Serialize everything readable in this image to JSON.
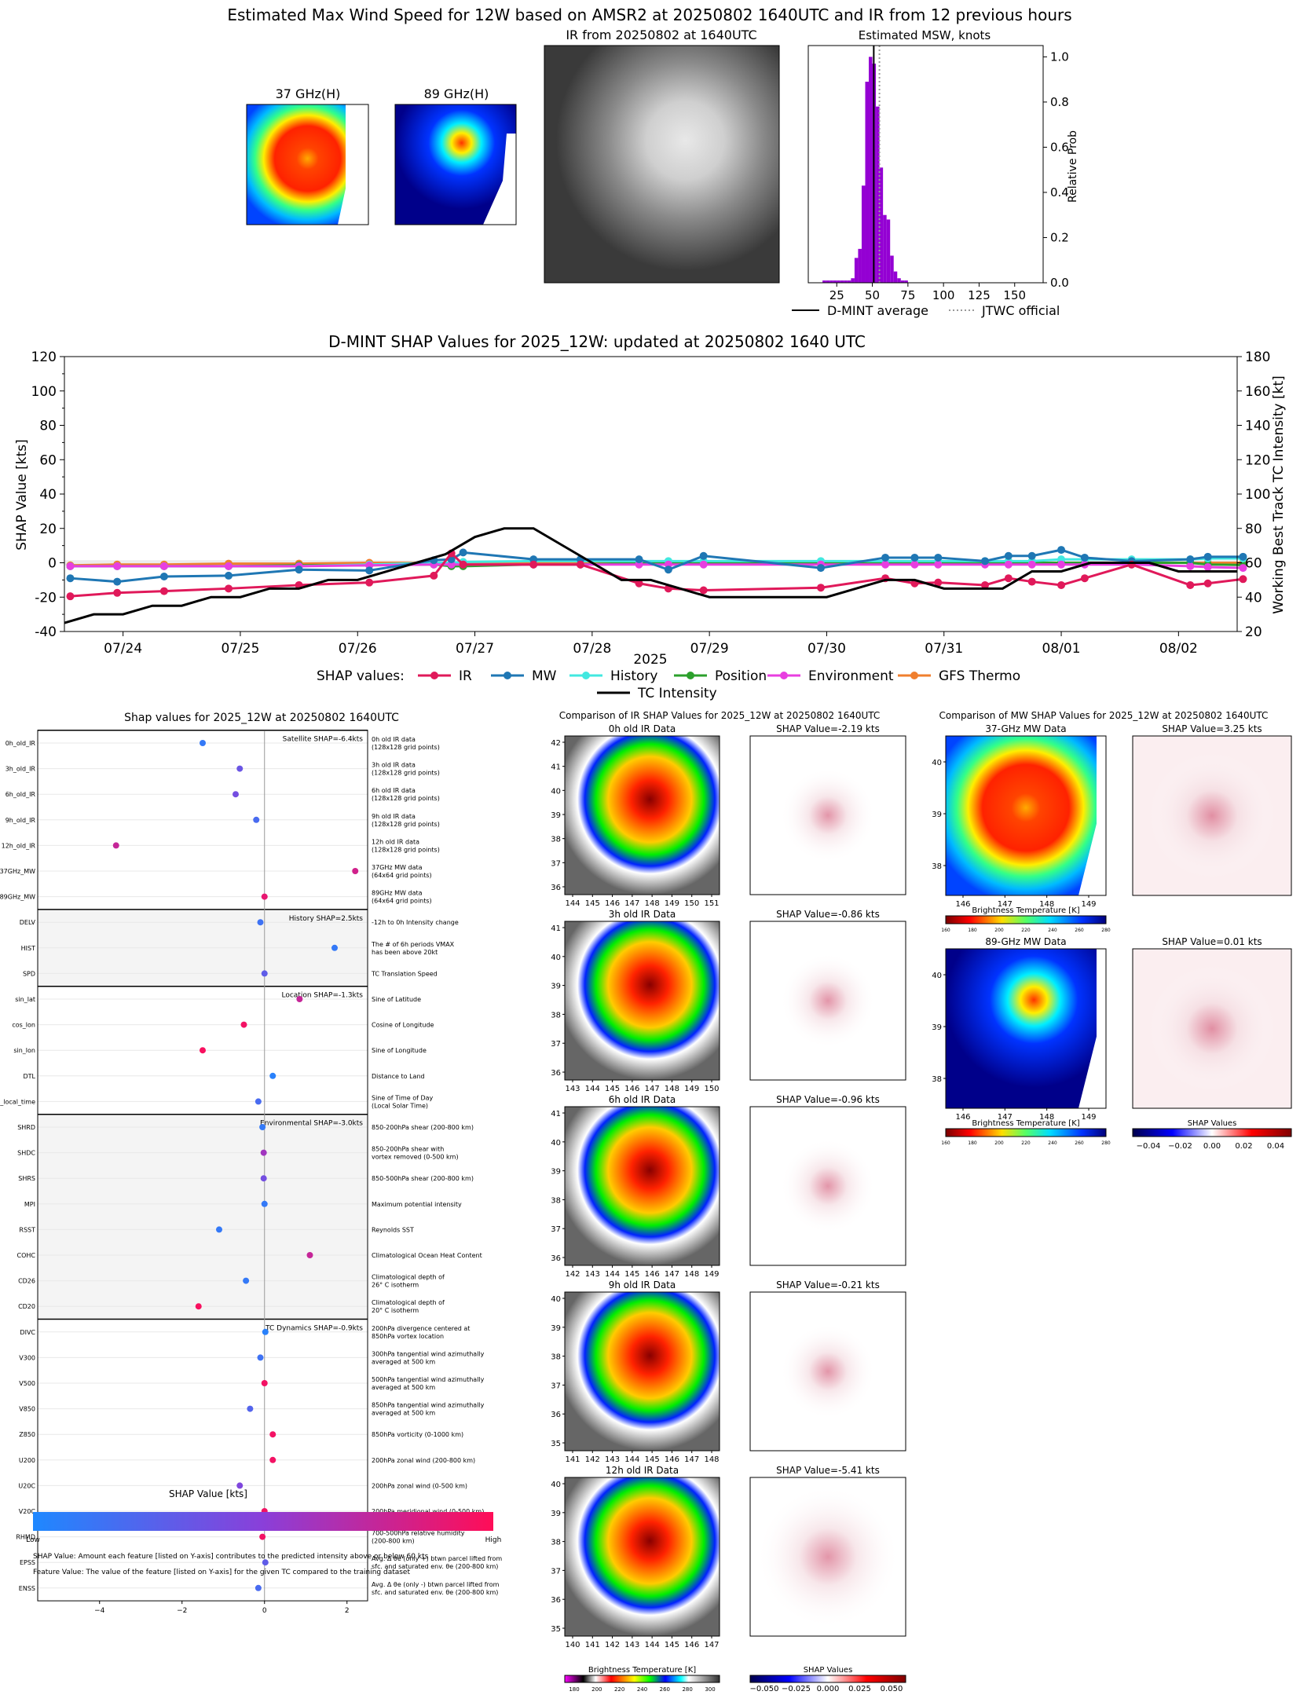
{
  "colors": {
    "ir": "#e0195a",
    "mw": "#1f77b4",
    "history": "#42e8e0",
    "position": "#2ca02c",
    "environment": "#e83ee0",
    "gfs": "#f07f2e",
    "tc": "#000000",
    "purple": "#9400d3",
    "shap_low": "#1e88ff",
    "shap_high": "#ff0d57"
  },
  "top": {
    "suptitle": "Estimated Max Wind Speed for 12W based on AMSR2 at 20250802 1640UTC and IR from 12 previous hours",
    "panel_37": "37 GHz(H)",
    "panel_89": "89 GHz(H)",
    "panel_ir": "IR from 20250802 at 1640UTC",
    "hist_title": "Estimated MSW, knots",
    "hist_ylabel": "Relative Prob",
    "legend_dmint": "D-MINT average",
    "legend_jtwc": "JTWC official"
  },
  "mid": {
    "title": "D-MINT SHAP Values for 2025_12W: updated at 20250802 1640 UTC",
    "ylabel_left": "SHAP Value [kts]",
    "ylabel_right": "Working Best Track TC Intensity [kt]",
    "xlabel": "2025",
    "legend_title": "SHAP values:",
    "legend": [
      "IR",
      "MW",
      "History",
      "Position",
      "Environment",
      "GFS Thermo",
      "TC Intensity"
    ]
  },
  "bottom": {
    "title_left": "Shap values for 2025_12W at 20250802 1640UTC",
    "title_ir": "Comparison of IR SHAP Values for 2025_12W at 20250802 1640UTC",
    "title_mw": "Comparison of MW SHAP Values for 2025_12W at 20250802 1640UTC",
    "xlabel": "SHAP Value [kts]",
    "low": "Low",
    "high": "High",
    "note1": "SHAP Value: Amount each feature [listed on Y-axis] contributes to the predicted intensity above or below 60 kts",
    "note2": "Feature Value: The value of the feature [listed on Y-axis] for the given TC compared to the training dataset",
    "group_labels": [
      "Satellite SHAP=-6.4kts",
      "History SHAP=2.5kts",
      "Location SHAP=-1.3kts",
      "Environmental SHAP=-3.0kts",
      "TC Dynamics SHAP=-0.9kts"
    ],
    "ir_rows": [
      {
        "data": "0h old IR Data",
        "shap": "SHAP Value=-2.19 kts",
        "xt": [
          "144",
          "145",
          "146",
          "147",
          "148",
          "149",
          "150",
          "151"
        ],
        "yt": [
          "42",
          "41",
          "40",
          "39",
          "38",
          "37",
          "36"
        ]
      },
      {
        "data": "3h old IR Data",
        "shap": "SHAP Value=-0.86 kts",
        "xt": [
          "143",
          "144",
          "145",
          "146",
          "147",
          "148",
          "149",
          "150"
        ],
        "yt": [
          "41",
          "40",
          "39",
          "38",
          "37",
          "36"
        ]
      },
      {
        "data": "6h old IR Data",
        "shap": "SHAP Value=-0.96 kts",
        "xt": [
          "142",
          "143",
          "144",
          "145",
          "146",
          "147",
          "148",
          "149"
        ],
        "yt": [
          "41",
          "40",
          "39",
          "38",
          "37",
          "36"
        ]
      },
      {
        "data": "9h old IR Data",
        "shap": "SHAP Value=-0.21 kts",
        "xt": [
          "141",
          "142",
          "143",
          "144",
          "145",
          "146",
          "147",
          "148"
        ],
        "yt": [
          "40",
          "39",
          "38",
          "37",
          "36",
          "35"
        ]
      },
      {
        "data": "12h old IR Data",
        "shap": "SHAP Value=-5.41 kts",
        "xt": [
          "140",
          "141",
          "142",
          "143",
          "144",
          "145",
          "146",
          "147"
        ],
        "yt": [
          "40",
          "39",
          "38",
          "37",
          "36",
          "35"
        ]
      }
    ],
    "mw_rows": [
      {
        "data": "37-GHz MW Data",
        "shap": "SHAP Value=3.25 kts"
      },
      {
        "data": "89-GHz MW Data",
        "shap": "SHAP Value=0.01 kts"
      }
    ],
    "mw_xt": [
      "146",
      "147",
      "148",
      "149"
    ],
    "mw_yt": [
      "40",
      "39",
      "38"
    ],
    "bt_label": "Brightness Temperature [K]",
    "bt_ticks": [
      "160",
      "180",
      "200",
      "220",
      "240",
      "260",
      "280"
    ],
    "bt_ticks_ir": [
      "180",
      "200",
      "220",
      "240",
      "260",
      "280",
      "300"
    ],
    "shap_cb_label": "SHAP Values",
    "shap_cb_ticks_mw": [
      "−0.04",
      "−0.02",
      "0.00",
      "0.02",
      "0.04"
    ],
    "shap_cb_ticks_ir": [
      "−0.050",
      "−0.025",
      "0.000",
      "0.025",
      "0.050"
    ]
  },
  "chart_data": [
    {
      "type": "bar",
      "title": "Estimated MSW, knots",
      "ylabel": "Relative Prob",
      "xlim": [
        5,
        170
      ],
      "ylim": [
        0,
        1.05
      ],
      "xticks": [
        25,
        50,
        75,
        100,
        125,
        150
      ],
      "yticks": [
        0.0,
        0.2,
        0.4,
        0.6,
        0.8,
        1.0
      ],
      "bin_width": 2.5,
      "bins_left": [
        15,
        17.5,
        20,
        22.5,
        25,
        27.5,
        30,
        32.5,
        35,
        37.5,
        40,
        42.5,
        45,
        47.5,
        50,
        52.5,
        55,
        57.5,
        60,
        62.5,
        65,
        67.5,
        70,
        72.5
      ],
      "values": [
        0.01,
        0.01,
        0.01,
        0.01,
        0.01,
        0.01,
        0.01,
        0.01,
        0.02,
        0.11,
        0.15,
        0.43,
        0.89,
        1.0,
        0.97,
        0.78,
        0.51,
        0.3,
        0.28,
        0.12,
        0.05,
        0.02,
        0.01,
        0.01
      ],
      "dmint_average": 51,
      "jtwc_official": 55
    },
    {
      "type": "line",
      "title": "D-MINT SHAP Values for 2025_12W: updated at 20250802 1640 UTC",
      "xlabel": "2025",
      "ylabel": "SHAP Value [kts]",
      "ylabel_right": "Working Best Track TC Intensity [kt]",
      "ylim": [
        -40,
        120
      ],
      "ylim_right": [
        20,
        180
      ],
      "xlim": [
        -0.25,
        9.75
      ],
      "xtick_labels": [
        "07/24",
        "07/25",
        "07/26",
        "07/27",
        "07/28",
        "07/29",
        "07/30",
        "07/31",
        "08/01",
        "08/02"
      ],
      "yticks": [
        -40,
        -20,
        0,
        20,
        40,
        60,
        80,
        100,
        120
      ],
      "yticks_right": [
        20,
        40,
        60,
        80,
        100,
        120,
        140,
        160,
        180
      ],
      "series": [
        {
          "name": "IR",
          "x": [
            -0.2,
            0.2,
            0.6,
            1.15,
            1.75,
            2.35,
            2.9,
            3.05,
            3.15,
            3.75,
            4.15,
            4.65,
            4.9,
            5.2,
            6.2,
            6.75,
            7.0,
            7.2,
            7.6,
            7.8,
            8.0,
            8.25,
            8.45,
            8.85,
            9.35,
            9.5,
            9.8
          ],
          "y": [
            -19.5,
            -17.5,
            -16.5,
            -15,
            -13,
            -11.5,
            -7.5,
            5.5,
            -1,
            -1,
            -1,
            -12,
            -15,
            -16,
            -14.5,
            -9,
            -12,
            -11.5,
            -13,
            -9,
            -11,
            -13,
            -9,
            -1,
            -13,
            -12,
            -9.5
          ]
        },
        {
          "name": "MW",
          "x": [
            -0.2,
            0.2,
            0.6,
            1.15,
            1.75,
            2.35,
            2.9,
            3.05,
            3.15,
            3.75,
            4.15,
            4.65,
            4.9,
            5.2,
            6.2,
            6.75,
            7.0,
            7.2,
            7.6,
            7.8,
            8.0,
            8.25,
            8.45,
            8.85,
            9.35,
            9.5,
            9.8
          ],
          "y": [
            -9,
            -11,
            -8,
            -7.5,
            -4,
            -4.5,
            1.5,
            2,
            6,
            2,
            2,
            2,
            -4,
            4,
            -3,
            3,
            3,
            3,
            1,
            4,
            4,
            7.5,
            3,
            1,
            2,
            3.5,
            3.5
          ]
        },
        {
          "name": "History",
          "x": [
            -0.2,
            0.2,
            0.6,
            1.15,
            1.75,
            2.35,
            2.9,
            3.05,
            3.15,
            3.75,
            4.15,
            4.65,
            4.9,
            5.2,
            6.2,
            6.75,
            7.0,
            7.2,
            7.6,
            7.8,
            8.0,
            8.25,
            8.45,
            8.85,
            9.35,
            9.5,
            9.8
          ],
          "y": [
            -2,
            -2,
            -2,
            -2,
            -2,
            -1,
            0,
            0,
            0.5,
            1,
            1,
            1,
            1,
            1,
            1,
            1,
            1,
            1,
            1,
            1,
            1,
            2,
            2,
            2,
            2,
            2.5,
            2.5
          ]
        },
        {
          "name": "Position",
          "x": [
            -0.2,
            0.2,
            0.6,
            1.15,
            1.75,
            2.35,
            2.9,
            3.05,
            3.15,
            3.75,
            4.15,
            4.65,
            4.9,
            5.2,
            6.2,
            6.75,
            7.0,
            7.2,
            7.6,
            7.8,
            8.0,
            8.25,
            8.45,
            8.85,
            9.35,
            9.5,
            9.8
          ],
          "y": [
            -2,
            -2,
            -2,
            -2,
            -1.5,
            -1.5,
            -1,
            -2,
            -2,
            -1,
            -1,
            0,
            0,
            0,
            0,
            0,
            0,
            0,
            0,
            0,
            0,
            0,
            0,
            0,
            0,
            -1,
            -1.3
          ]
        },
        {
          "name": "Environment",
          "x": [
            -0.2,
            0.2,
            0.6,
            1.15,
            1.75,
            2.35,
            2.9,
            3.05,
            3.15,
            3.75,
            4.15,
            4.65,
            4.9,
            5.2,
            6.2,
            6.75,
            7.0,
            7.2,
            7.6,
            7.8,
            8.0,
            8.25,
            8.45,
            8.85,
            9.35,
            9.5,
            9.8
          ],
          "y": [
            -2,
            -2,
            -2,
            -2,
            -2,
            -1.5,
            -1,
            -1,
            -1,
            -1,
            -1,
            -1,
            -1,
            -1,
            -1,
            -1,
            -1,
            -1,
            -1,
            -1,
            -1,
            -1,
            -1,
            -1,
            -2,
            -2.5,
            -3
          ]
        },
        {
          "name": "GFS Thermo",
          "x": [
            -0.2,
            0.2,
            0.6,
            1.15,
            1.75,
            2.35,
            2.9,
            3.05,
            3.15,
            3.75,
            4.15,
            4.65,
            4.9,
            5.2,
            6.2,
            6.75,
            7.0,
            7.2,
            7.6,
            7.8,
            8.0,
            8.25,
            8.45,
            8.85,
            9.35,
            9.5,
            9.8
          ],
          "y": [
            -1.5,
            -1,
            -1,
            -0.5,
            -0.5,
            0,
            0,
            0,
            0,
            0,
            0,
            0,
            0,
            0,
            0,
            0,
            0,
            0,
            0,
            0,
            0,
            0,
            0,
            0,
            0,
            0,
            0
          ]
        },
        {
          "name": "TC Intensity",
          "axis": "right",
          "x": [
            -0.25,
            0.0,
            0.25,
            0.5,
            0.75,
            1.0,
            1.25,
            1.5,
            1.75,
            2.0,
            2.25,
            2.5,
            2.75,
            3.0,
            3.25,
            3.5,
            3.75,
            4.0,
            4.25,
            4.5,
            4.75,
            5.0,
            5.25,
            5.5,
            5.75,
            6.0,
            6.25,
            6.5,
            6.75,
            7.0,
            7.25,
            7.5,
            7.75,
            8.0,
            8.25,
            8.5,
            8.75,
            9.0,
            9.25,
            9.5,
            9.75
          ],
          "y": [
            25,
            30,
            30,
            35,
            35,
            40,
            40,
            45,
            45,
            50,
            50,
            55,
            60,
            65,
            75,
            80,
            80,
            70,
            60,
            50,
            50,
            45,
            40,
            40,
            40,
            40,
            40,
            45,
            50,
            50,
            45,
            45,
            45,
            55,
            55,
            60,
            60,
            60,
            55,
            55,
            55
          ]
        }
      ]
    },
    {
      "type": "scatter",
      "title": "Shap values for 2025_12W at 20250802 1640UTC",
      "xlabel": "SHAP Value [kts]",
      "xlim": [
        -5.5,
        2.5
      ],
      "xticks": [
        -4,
        -2,
        0,
        2
      ],
      "features": [
        {
          "name": "0h_old_IR",
          "desc": "0h old IR data\n(128x128 grid points)",
          "shap": -1.5,
          "fv": 0.1
        },
        {
          "name": "3h_old_IR",
          "desc": "3h old IR data\n(128x128 grid points)",
          "shap": -0.6,
          "fv": 0.35
        },
        {
          "name": "6h_old_IR",
          "desc": "6h old IR data\n(128x128 grid points)",
          "shap": -0.7,
          "fv": 0.4
        },
        {
          "name": "9h_old_IR",
          "desc": "9h old IR data\n(128x128 grid points)",
          "shap": -0.2,
          "fv": 0.2
        },
        {
          "name": "12h_old_IR",
          "desc": "12h old IR data\n(128x128 grid points)",
          "shap": -3.6,
          "fv": 0.75
        },
        {
          "name": "37GHz_MW",
          "desc": "37GHz MW data\n(64x64 grid points)",
          "shap": 2.2,
          "fv": 0.8
        },
        {
          "name": "89GHz_MW",
          "desc": "89GHz MW data\n(64x64 grid points)",
          "shap": 0.0,
          "fv": 0.9
        },
        {
          "name": "DELV",
          "desc": "-12h to 0h Intensity change",
          "shap": -0.1,
          "fv": 0.15
        },
        {
          "name": "HIST",
          "desc": "The # of 6h periods VMAX\nhas been above 20kt",
          "shap": 1.7,
          "fv": 0.1
        },
        {
          "name": "SPD",
          "desc": "TC Translation Speed",
          "shap": 0.0,
          "fv": 0.3
        },
        {
          "name": "sin_lat",
          "desc": "Sine of Latitude",
          "shap": 0.85,
          "fv": 0.75
        },
        {
          "name": "cos_lon",
          "desc": "Cosine of Longitude",
          "shap": -0.5,
          "fv": 0.95
        },
        {
          "name": "sin_lon",
          "desc": "Sine of Longitude",
          "shap": -1.5,
          "fv": 0.97
        },
        {
          "name": "DTL",
          "desc": "Distance to Land",
          "shap": 0.2,
          "fv": 0.05
        },
        {
          "name": "sin_local_time",
          "desc": "Sine of Time of Day\n(Local Solar Time)",
          "shap": -0.15,
          "fv": 0.2
        },
        {
          "name": "SHRD",
          "desc": "850-200hPa shear (200-800 km)",
          "shap": -0.05,
          "fv": 0.1
        },
        {
          "name": "SHDC",
          "desc": "850-200hPa shear with\nvortex removed (0-500 km)",
          "shap": -0.02,
          "fv": 0.6
        },
        {
          "name": "SHRS",
          "desc": "850-500hPa shear (200-800 km)",
          "shap": -0.02,
          "fv": 0.4
        },
        {
          "name": "MPI",
          "desc": "Maximum potential intensity",
          "shap": 0.0,
          "fv": 0.1
        },
        {
          "name": "RSST",
          "desc": "Reynolds SST",
          "shap": -1.1,
          "fv": 0.1
        },
        {
          "name": "COHC",
          "desc": "Climatological Ocean Heat Content",
          "shap": 1.1,
          "fv": 0.75
        },
        {
          "name": "CD26",
          "desc": "Climatological depth of\n26° C isotherm",
          "shap": -0.45,
          "fv": 0.1
        },
        {
          "name": "CD20",
          "desc": "Climatological depth of\n20° C isotherm",
          "shap": -1.6,
          "fv": 0.97
        },
        {
          "name": "DIVC",
          "desc": "200hPa divergence centered at\n850hPa vortex location",
          "shap": 0.02,
          "fv": 0.05
        },
        {
          "name": "V300",
          "desc": "300hPa tangential wind azimuthally\naveraged at 500 km",
          "shap": -0.1,
          "fv": 0.15
        },
        {
          "name": "V500",
          "desc": "500hPa tangential wind azimuthally\naveraged at 500 km",
          "shap": 0.0,
          "fv": 0.95
        },
        {
          "name": "V850",
          "desc": "850hPa tangential wind azimuthally\naveraged at 500 km",
          "shap": -0.35,
          "fv": 0.25
        },
        {
          "name": "Z850",
          "desc": "850hPa vorticity (0-1000 km)",
          "shap": 0.2,
          "fv": 0.95
        },
        {
          "name": "U200",
          "desc": "200hPa zonal wind (200-800 km)",
          "shap": 0.2,
          "fv": 0.95
        },
        {
          "name": "U20C",
          "desc": "200hPa zonal wind (0-500 km)",
          "shap": -0.6,
          "fv": 0.45
        },
        {
          "name": "V20C",
          "desc": "200hPa meridional wind (0-500 km)",
          "shap": 0.0,
          "fv": 0.95
        },
        {
          "name": "RHMD",
          "desc": "700-500hPa relative humidity\n(200-800 km)",
          "shap": -0.05,
          "fv": 0.95
        },
        {
          "name": "EPSS",
          "desc": "Avg. Δ θe (only +) btwn parcel lifted from\nsfc. and saturated env. θe (200-800 km)",
          "shap": 0.02,
          "fv": 0.3
        },
        {
          "name": "ENSS",
          "desc": "Avg. Δ θe (only -) btwn parcel lifted from\nsfc. and saturated env. θe (200-800 km)",
          "shap": -0.15,
          "fv": 0.2
        }
      ]
    }
  ]
}
